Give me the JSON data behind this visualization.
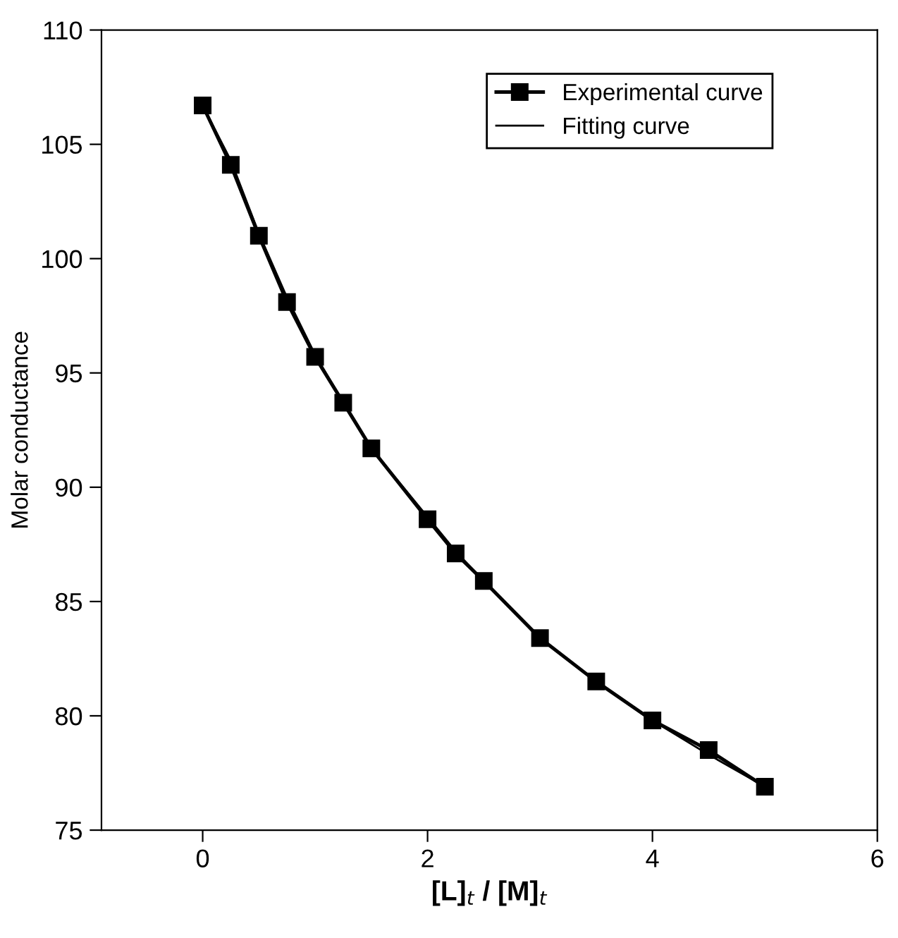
{
  "chart_data": {
    "type": "line",
    "xlabel": "[L]$_{t}$ / [M]$_{t}$",
    "ylabel": "Molar conductance",
    "xlim": [
      -0.9,
      6
    ],
    "ylim": [
      75,
      110
    ],
    "xticks": [
      0,
      2,
      4,
      6
    ],
    "yticks": [
      75,
      80,
      85,
      90,
      95,
      100,
      105,
      110
    ],
    "grid": false,
    "legend": "top right",
    "series": [
      {
        "name": "Experimental curve",
        "color": "#000000",
        "marker": "square",
        "line_style": "solid",
        "x": [
          0,
          0.25,
          0.5,
          0.75,
          1,
          1.25,
          1.5,
          2,
          2.25,
          2.5,
          3,
          3.5,
          4,
          4.5,
          5
        ],
        "values": [
          106.7,
          104.1,
          101.0,
          98.1,
          95.7,
          93.7,
          91.7,
          88.6,
          87.1,
          85.9,
          83.4,
          81.5,
          79.8,
          78.5,
          76.9
        ]
      },
      {
        "name": "Fitting curve",
        "color": "#000000",
        "marker": "none",
        "line_style": "solid",
        "x": [
          0,
          0.25,
          0.5,
          0.75,
          1,
          1.25,
          1.5,
          2,
          2.25,
          2.5,
          3,
          3.5,
          4,
          4.5,
          5
        ],
        "values": [
          106.7,
          104.3,
          101.1,
          98.3,
          95.8,
          93.7,
          91.7,
          88.7,
          87.2,
          85.9,
          83.4,
          81.5,
          79.8,
          78.3,
          76.9
        ]
      }
    ]
  }
}
